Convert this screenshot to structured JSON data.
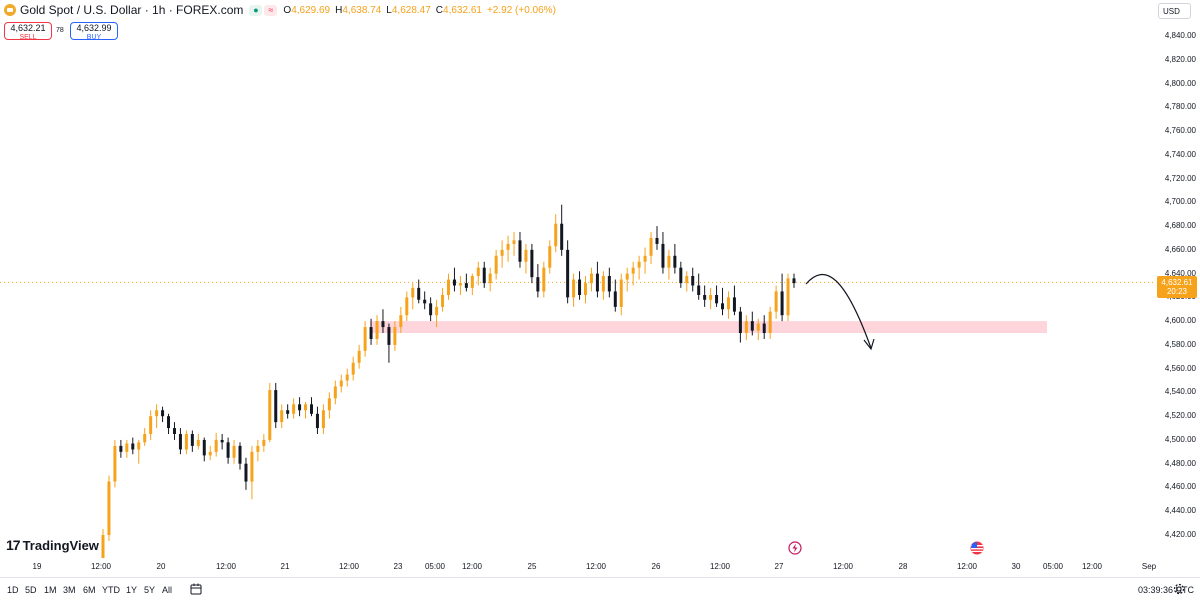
{
  "header": {
    "symbol": "Gold Spot / U.S. Dollar · 1h · FOREX.com",
    "open_label": "O",
    "open": "4,629.69",
    "high_label": "H",
    "high": "4,638.74",
    "low_label": "L",
    "low": "4,628.47",
    "close_label": "C",
    "close": "4,632.61",
    "change": "+2.92 (+0.06%)",
    "badge_left": "●",
    "badge_right": "≈"
  },
  "trade": {
    "sell_price": "4,632.21",
    "sell_label": "SELL",
    "spread": "78",
    "buy_price": "4,632.99",
    "buy_label": "BUY"
  },
  "currency": "USD",
  "price_axis": [
    "4,840.00",
    "4,820.00",
    "4,800.00",
    "4,780.00",
    "4,760.00",
    "4,740.00",
    "4,720.00",
    "4,700.00",
    "4,680.00",
    "4,660.00",
    "4,640.00",
    "4,620.00",
    "4,600.00",
    "4,580.00",
    "4,560.00",
    "4,540.00",
    "4,520.00",
    "4,500.00",
    "4,480.00",
    "4,460.00",
    "4,440.00",
    "4,420.00"
  ],
  "current_price": {
    "price": "4,632.61",
    "countdown": "20:23"
  },
  "time_axis": [
    "19",
    "12:00",
    "20",
    "12:00",
    "21",
    "12:00",
    "23",
    "05:00",
    "12:00",
    "25",
    "12:00",
    "26",
    "12:00",
    "27",
    "12:00",
    "28",
    "12:00",
    "30",
    "05:00",
    "12:00",
    "Sep"
  ],
  "ranges": [
    "1D",
    "5D",
    "1M",
    "3M",
    "6M",
    "YTD",
    "1Y",
    "5Y",
    "All"
  ],
  "clock": "03:39:36 UTC",
  "brand": {
    "mark": "17",
    "name": "TradingView"
  },
  "colors": {
    "candle": "#f7a21b",
    "bear": "#131722",
    "zone": "#fdd5db",
    "accent": "#2962ff",
    "sell": "#f23645"
  },
  "icons": [
    "gold-coin-icon",
    "calendar-range-icon",
    "settings-gear-icon",
    "lightning-event-icon",
    "us-flag-event-icon",
    "curved-arrow-down-icon"
  ],
  "chart_data": {
    "type": "candlestick",
    "symbol": "Gold Spot / U.S. Dollar",
    "interval": "1h",
    "ylim": [
      4410,
      4850
    ],
    "fields": [
      "open",
      "high",
      "low",
      "close"
    ],
    "candles": [
      [
        4400,
        4425,
        4395,
        4420
      ],
      [
        4420,
        4470,
        4415,
        4465
      ],
      [
        4465,
        4500,
        4460,
        4495
      ],
      [
        4495,
        4500,
        4485,
        4490
      ],
      [
        4490,
        4500,
        4485,
        4497
      ],
      [
        4497,
        4502,
        4488,
        4492
      ],
      [
        4492,
        4500,
        4480,
        4498
      ],
      [
        4498,
        4510,
        4495,
        4505
      ],
      [
        4505,
        4525,
        4500,
        4520
      ],
      [
        4520,
        4530,
        4510,
        4525
      ],
      [
        4525,
        4528,
        4515,
        4520
      ],
      [
        4520,
        4522,
        4505,
        4510
      ],
      [
        4510,
        4515,
        4500,
        4505
      ],
      [
        4505,
        4510,
        4488,
        4492
      ],
      [
        4492,
        4508,
        4488,
        4505
      ],
      [
        4505,
        4508,
        4490,
        4495
      ],
      [
        4495,
        4505,
        4492,
        4500
      ],
      [
        4500,
        4502,
        4482,
        4487
      ],
      [
        4487,
        4495,
        4483,
        4490
      ],
      [
        4490,
        4506,
        4486,
        4500
      ],
      [
        4500,
        4505,
        4492,
        4498
      ],
      [
        4498,
        4502,
        4480,
        4485
      ],
      [
        4485,
        4500,
        4480,
        4495
      ],
      [
        4495,
        4498,
        4475,
        4480
      ],
      [
        4480,
        4485,
        4458,
        4465
      ],
      [
        4465,
        4495,
        4450,
        4490
      ],
      [
        4490,
        4500,
        4482,
        4495
      ],
      [
        4495,
        4505,
        4490,
        4500
      ],
      [
        4500,
        4548,
        4498,
        4542
      ],
      [
        4542,
        4548,
        4510,
        4515
      ],
      [
        4515,
        4530,
        4510,
        4525
      ],
      [
        4525,
        4530,
        4518,
        4522
      ],
      [
        4522,
        4535,
        4518,
        4530
      ],
      [
        4530,
        4536,
        4520,
        4525
      ],
      [
        4525,
        4532,
        4518,
        4530
      ],
      [
        4530,
        4536,
        4520,
        4522
      ],
      [
        4522,
        4528,
        4505,
        4510
      ],
      [
        4510,
        4530,
        4505,
        4525
      ],
      [
        4525,
        4540,
        4518,
        4535
      ],
      [
        4535,
        4550,
        4530,
        4545
      ],
      [
        4545,
        4555,
        4540,
        4550
      ],
      [
        4550,
        4560,
        4545,
        4555
      ],
      [
        4555,
        4570,
        4550,
        4565
      ],
      [
        4565,
        4580,
        4560,
        4575
      ],
      [
        4575,
        4600,
        4570,
        4595
      ],
      [
        4595,
        4602,
        4580,
        4585
      ],
      [
        4585,
        4605,
        4580,
        4600
      ],
      [
        4600,
        4610,
        4590,
        4595
      ],
      [
        4595,
        4598,
        4565,
        4580
      ],
      [
        4580,
        4600,
        4575,
        4595
      ],
      [
        4595,
        4612,
        4590,
        4605
      ],
      [
        4605,
        4625,
        4600,
        4620
      ],
      [
        4620,
        4632,
        4610,
        4628
      ],
      [
        4628,
        4635,
        4615,
        4618
      ],
      [
        4618,
        4625,
        4610,
        4615
      ],
      [
        4615,
        4620,
        4600,
        4605
      ],
      [
        4605,
        4618,
        4595,
        4612
      ],
      [
        4612,
        4628,
        4608,
        4622
      ],
      [
        4622,
        4640,
        4618,
        4635
      ],
      [
        4635,
        4645,
        4625,
        4630
      ],
      [
        4630,
        4638,
        4622,
        4632
      ],
      [
        4632,
        4640,
        4625,
        4628
      ],
      [
        4628,
        4640,
        4622,
        4638
      ],
      [
        4638,
        4650,
        4630,
        4645
      ],
      [
        4645,
        4650,
        4628,
        4632
      ],
      [
        4632,
        4645,
        4625,
        4640
      ],
      [
        4640,
        4660,
        4635,
        4655
      ],
      [
        4655,
        4668,
        4645,
        4660
      ],
      [
        4660,
        4672,
        4650,
        4665
      ],
      [
        4665,
        4675,
        4655,
        4668
      ],
      [
        4668,
        4675,
        4645,
        4650
      ],
      [
        4650,
        4665,
        4640,
        4660
      ],
      [
        4660,
        4665,
        4632,
        4637
      ],
      [
        4637,
        4648,
        4620,
        4625
      ],
      [
        4625,
        4650,
        4620,
        4645
      ],
      [
        4645,
        4668,
        4640,
        4663
      ],
      [
        4663,
        4690,
        4658,
        4682
      ],
      [
        4682,
        4698,
        4655,
        4660
      ],
      [
        4660,
        4668,
        4615,
        4620
      ],
      [
        4620,
        4640,
        4612,
        4635
      ],
      [
        4635,
        4642,
        4618,
        4622
      ],
      [
        4622,
        4638,
        4615,
        4632
      ],
      [
        4632,
        4645,
        4625,
        4640
      ],
      [
        4640,
        4650,
        4620,
        4625
      ],
      [
        4625,
        4642,
        4618,
        4638
      ],
      [
        4638,
        4645,
        4620,
        4625
      ],
      [
        4625,
        4635,
        4608,
        4612
      ],
      [
        4612,
        4640,
        4605,
        4635
      ],
      [
        4635,
        4645,
        4625,
        4640
      ],
      [
        4640,
        4650,
        4630,
        4645
      ],
      [
        4645,
        4655,
        4635,
        4650
      ],
      [
        4650,
        4662,
        4640,
        4655
      ],
      [
        4655,
        4675,
        4648,
        4670
      ],
      [
        4670,
        4680,
        4660,
        4665
      ],
      [
        4665,
        4675,
        4640,
        4645
      ],
      [
        4645,
        4660,
        4635,
        4655
      ],
      [
        4655,
        4665,
        4640,
        4645
      ],
      [
        4645,
        4650,
        4628,
        4632
      ],
      [
        4632,
        4642,
        4625,
        4638
      ],
      [
        4638,
        4645,
        4625,
        4630
      ],
      [
        4630,
        4640,
        4618,
        4622
      ],
      [
        4622,
        4630,
        4612,
        4618
      ],
      [
        4618,
        4628,
        4610,
        4622
      ],
      [
        4622,
        4630,
        4612,
        4615
      ],
      [
        4615,
        4628,
        4605,
        4610
      ],
      [
        4610,
        4625,
        4602,
        4620
      ],
      [
        4620,
        4630,
        4605,
        4608
      ],
      [
        4608,
        4612,
        4582,
        4590
      ],
      [
        4590,
        4605,
        4584,
        4600
      ],
      [
        4600,
        4608,
        4588,
        4592
      ],
      [
        4592,
        4602,
        4584,
        4598
      ],
      [
        4598,
        4605,
        4585,
        4590
      ],
      [
        4590,
        4612,
        4585,
        4608
      ],
      [
        4608,
        4630,
        4602,
        4625
      ],
      [
        4625,
        4640,
        4600,
        4605
      ],
      [
        4605,
        4640,
        4600,
        4636
      ],
      [
        4636,
        4640,
        4628,
        4632
      ]
    ],
    "zone": {
      "low": 4590,
      "high": 4600
    },
    "last_price": 4632.61
  }
}
